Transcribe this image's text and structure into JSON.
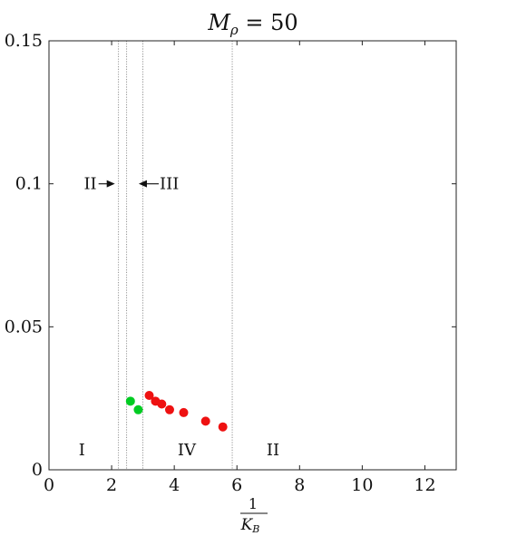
{
  "chart_data": {
    "type": "scatter",
    "title": {
      "base": "M",
      "sub": "ρ",
      "rest": " = 50"
    },
    "xlabel": {
      "numerator": "1",
      "denominator": "K",
      "denominator_sub": "B"
    },
    "ylabel": "",
    "xlim": [
      0,
      13
    ],
    "ylim": [
      0,
      0.15
    ],
    "x_ticks": [
      0,
      2,
      4,
      6,
      8,
      10,
      12
    ],
    "x_tick_labels": [
      "0",
      "2",
      "4",
      "6",
      "8",
      "10",
      "12"
    ],
    "y_ticks": [
      0,
      0.05,
      0.1,
      0.15
    ],
    "y_tick_labels": [
      "0",
      "0.05",
      "0.1",
      "0.15"
    ],
    "grid": false,
    "vertical_lines": [
      2.22,
      2.48,
      3.0,
      5.85
    ],
    "series": [
      {
        "color": "#00cc22",
        "points": [
          [
            2.6,
            0.024
          ],
          [
            2.85,
            0.021
          ]
        ]
      },
      {
        "color": "#ee1111",
        "points": [
          [
            3.2,
            0.026
          ],
          [
            3.4,
            0.024
          ],
          [
            3.6,
            0.023
          ],
          [
            3.85,
            0.021
          ],
          [
            4.3,
            0.02
          ],
          [
            5.0,
            0.017
          ],
          [
            5.55,
            0.015
          ]
        ]
      }
    ],
    "region_labels": [
      {
        "text": "I",
        "x": 1.05,
        "y": 0.005
      },
      {
        "text": "IV",
        "x": 4.4,
        "y": 0.005
      },
      {
        "text": "II",
        "x": 7.15,
        "y": 0.005
      }
    ],
    "arrow_annotations": [
      {
        "text": "II",
        "direction": "right",
        "x": 2.22,
        "y": 0.1
      },
      {
        "text": "III",
        "direction": "left",
        "x": 2.75,
        "y": 0.1
      }
    ]
  }
}
